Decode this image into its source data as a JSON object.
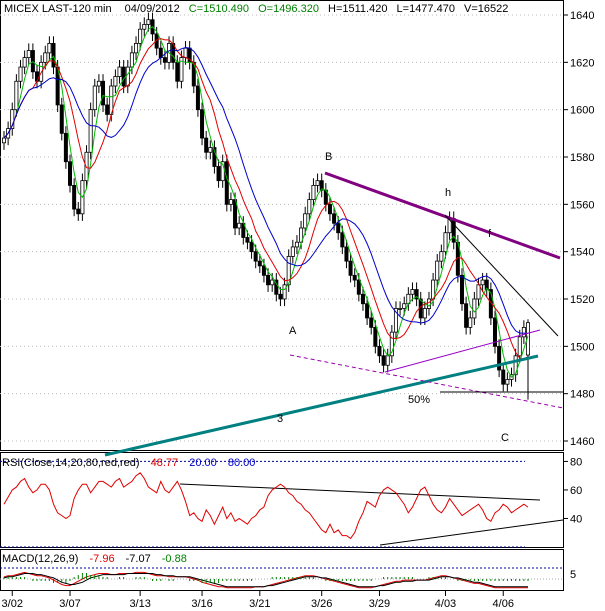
{
  "header": {
    "symbol": "MICEX LAST-120 min",
    "date": "04/09/2012",
    "close": "C=1510.490",
    "open": "O=1496.320",
    "high": "H=1511.420",
    "low": "L=1477.470",
    "volume": "V=16522"
  },
  "colors": {
    "close": "#008000",
    "open": "#008000",
    "high": "#000000",
    "low": "#000000",
    "volume": "#000000",
    "ma_fast": "#00bb00",
    "ma_mid": "#e00000",
    "ma_slow": "#0000cc",
    "trend_purple": "#800080",
    "trend_teal": "#008080",
    "rsi": "#e00000",
    "macd": "#e00000",
    "signal": "#000000",
    "annotation": "#cc0000",
    "annotation_green": "#008000"
  },
  "annotations": {
    "A": "A",
    "B": "B",
    "C": "C",
    "f": "f",
    "h": "h",
    "fib": "50%",
    "wave3": "3"
  },
  "rsi_header": {
    "label": "RSI(Close,14,20,80,red,red)",
    "value": "48.77",
    "low": "20.00",
    "high": "80.00"
  },
  "macd_header": {
    "label": "MACD(12,26,9)",
    "macd": "-7.96",
    "signal": "-7.07",
    "hist": "-0.88"
  },
  "chart_data": [
    {
      "type": "candlestick",
      "title": "MICEX LAST-120 min",
      "y_ticks": [
        1460,
        1480,
        1500,
        1520,
        1540,
        1560,
        1580,
        1600,
        1620,
        1640
      ],
      "ylim": [
        1450,
        1648
      ],
      "x_tick_labels": [
        "3/02",
        "3/07",
        "3/13",
        "3/16",
        "3/21",
        "3/26",
        "3/29",
        "4/03",
        "4/06"
      ],
      "x_tick_index": [
        2,
        16,
        33,
        48,
        62,
        77,
        91,
        107,
        121
      ],
      "bar_count": 128,
      "last_bar": {
        "open": 1496.32,
        "high": 1511.42,
        "low": 1477.47,
        "close": 1510.49
      },
      "series": [
        {
          "name": "price",
          "values": [
            1588,
            1592,
            1600,
            1612,
            1618,
            1622,
            1625,
            1616,
            1612,
            1620,
            1624,
            1628,
            1618,
            1602,
            1590,
            1578,
            1568,
            1558,
            1556,
            1570,
            1582,
            1600,
            1610,
            1612,
            1602,
            1598,
            1610,
            1614,
            1618,
            1610,
            1618,
            1624,
            1628,
            1634,
            1636,
            1638,
            1632,
            1626,
            1622,
            1620,
            1628,
            1620,
            1612,
            1622,
            1626,
            1620,
            1610,
            1600,
            1588,
            1582,
            1584,
            1576,
            1570,
            1578,
            1560,
            1562,
            1550,
            1552,
            1546,
            1544,
            1540,
            1536,
            1534,
            1530,
            1526,
            1528,
            1522,
            1520,
            1526,
            1538,
            1542,
            1544,
            1550,
            1556,
            1562,
            1568,
            1570,
            1566,
            1560,
            1556,
            1552,
            1548,
            1542,
            1536,
            1530,
            1528,
            1522,
            1518,
            1512,
            1508,
            1500,
            1496,
            1492,
            1496,
            1506,
            1516,
            1516,
            1518,
            1522,
            1524,
            1520,
            1512,
            1516,
            1520,
            1528,
            1536,
            1540,
            1548,
            1554,
            1544,
            1530,
            1518,
            1508,
            1512,
            1520,
            1526,
            1528,
            1524,
            1512,
            1500,
            1490,
            1484,
            1486,
            1488,
            1496,
            1504,
            1508,
            1510
          ]
        }
      ]
    },
    {
      "type": "line",
      "title": "RSI(Close,14,20,80,red,red)",
      "y_ticks": [
        40,
        60,
        80
      ],
      "ylim": [
        20,
        88
      ],
      "series": [
        {
          "name": "RSI",
          "values": [
            50,
            55,
            60,
            62,
            66,
            68,
            62,
            58,
            60,
            64,
            64,
            60,
            50,
            44,
            42,
            40,
            42,
            54,
            60,
            64,
            64,
            58,
            62,
            66,
            66,
            64,
            62,
            66,
            68,
            62,
            64,
            66,
            70,
            72,
            68,
            62,
            60,
            58,
            66,
            60,
            58,
            62,
            66,
            60,
            52,
            42,
            44,
            40,
            38,
            46,
            42,
            36,
            42,
            48,
            40,
            44,
            38,
            40,
            38,
            36,
            40,
            42,
            46,
            48,
            56,
            60,
            62,
            64,
            62,
            58,
            56,
            52,
            50,
            46,
            44,
            40,
            36,
            32,
            30,
            36,
            30,
            32,
            28,
            28,
            26,
            30,
            38,
            44,
            52,
            50,
            48,
            56,
            60,
            62,
            60,
            58,
            54,
            50,
            44,
            48,
            54,
            60,
            62,
            56,
            50,
            46,
            44,
            48,
            54,
            50,
            46,
            42,
            44,
            46,
            48,
            50,
            46,
            40,
            38,
            44,
            46,
            50,
            48,
            44,
            46,
            48,
            50,
            48
          ]
        }
      ]
    },
    {
      "type": "line",
      "title": "MACD(12,26,9)",
      "series": [
        {
          "name": "MACD",
          "values": [
            2,
            3,
            3,
            4,
            5,
            6,
            5,
            4,
            3,
            3,
            2,
            1,
            -1,
            -3,
            -5,
            -6,
            -6,
            -4,
            -2,
            0,
            2,
            3,
            4,
            5,
            5,
            5,
            4,
            4,
            5,
            5,
            5,
            5,
            6,
            6,
            6,
            5,
            4,
            3,
            3,
            3,
            2,
            2,
            2,
            2,
            2,
            1,
            0,
            -1,
            -3,
            -4,
            -5,
            -6,
            -7,
            -7,
            -8,
            -8,
            -8,
            -8,
            -8,
            -8,
            -8,
            -7,
            -7,
            -7,
            -6,
            -5,
            -4,
            -3,
            -2,
            -1,
            0,
            1,
            2,
            3,
            3,
            3,
            2,
            1,
            0,
            -1,
            -2,
            -3,
            -4,
            -5,
            -6,
            -7,
            -8,
            -8,
            -8,
            -8,
            -7,
            -6,
            -5,
            -4,
            -3,
            -2,
            -2,
            -1,
            -1,
            -1,
            -1,
            -1,
            -1,
            0,
            1,
            2,
            3,
            3,
            2,
            1,
            0,
            -1,
            -2,
            -3,
            -4,
            -4,
            -5,
            -6,
            -7,
            -8,
            -8,
            -8,
            -8,
            -8,
            -8,
            -8,
            -8,
            -8
          ]
        },
        {
          "name": "Signal",
          "values": [
            1,
            2,
            2,
            3,
            4,
            5,
            5,
            5,
            4,
            4,
            3,
            2,
            1,
            -1,
            -3,
            -4,
            -5,
            -5,
            -4,
            -3,
            -1,
            1,
            2,
            3,
            4,
            4,
            4,
            4,
            4,
            4,
            5,
            5,
            5,
            5,
            5,
            5,
            5,
            4,
            4,
            3,
            3,
            3,
            2,
            2,
            2,
            2,
            1,
            0,
            -1,
            -2,
            -3,
            -4,
            -5,
            -6,
            -7,
            -7,
            -7,
            -7,
            -7,
            -7,
            -7,
            -7,
            -7,
            -7,
            -6,
            -6,
            -5,
            -4,
            -3,
            -2,
            -1,
            0,
            1,
            2,
            2,
            2,
            2,
            1,
            1,
            0,
            -1,
            -2,
            -3,
            -4,
            -5,
            -6,
            -7,
            -7,
            -7,
            -7,
            -7,
            -6,
            -6,
            -5,
            -4,
            -3,
            -3,
            -2,
            -2,
            -2,
            -1,
            -1,
            -1,
            -1,
            0,
            1,
            2,
            2,
            2,
            1,
            1,
            0,
            -1,
            -2,
            -3,
            -3,
            -4,
            -5,
            -6,
            -7,
            -7,
            -7,
            -7,
            -7,
            -7,
            -7,
            -7,
            -7
          ]
        }
      ]
    }
  ]
}
